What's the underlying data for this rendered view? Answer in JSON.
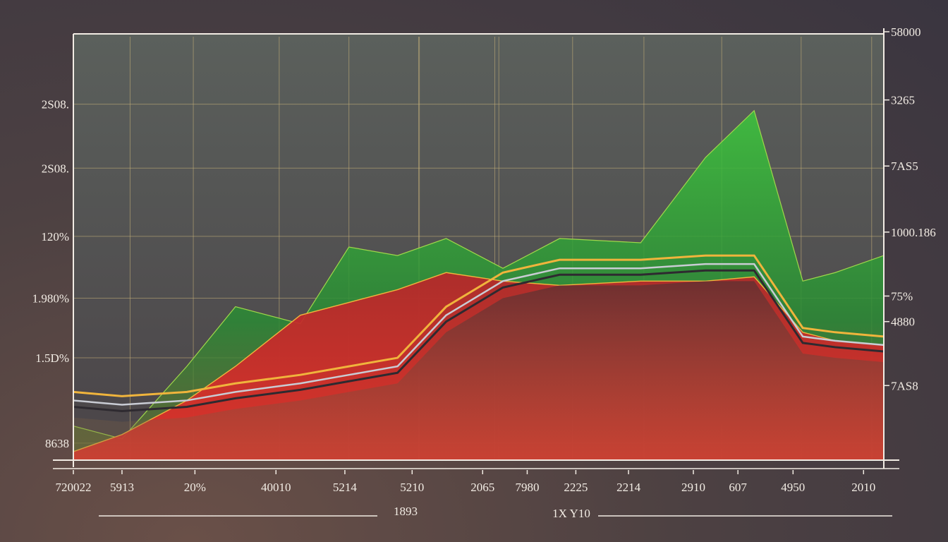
{
  "chart_data": {
    "type": "area",
    "title": "",
    "xlabel": "1893",
    "xlabel_secondary": "1X Y10",
    "ylabel": "",
    "x_ticks": [
      "720022",
      "5913",
      "20%",
      "40010",
      "5214",
      "5210",
      "2065",
      "7980",
      "2225",
      "2214",
      "2910",
      "607",
      "4950",
      "2010"
    ],
    "y_ticks_left": [
      "2S08.",
      "2S08.",
      "120%",
      "1.980%",
      "1.5D%",
      "8638"
    ],
    "y_ticks_right": [
      "58000",
      "3265",
      "7AS5",
      "1000.186",
      "75%",
      "4880",
      "7AS8"
    ],
    "grid": true,
    "legend": "none",
    "x": [
      0,
      0.06,
      0.14,
      0.2,
      0.28,
      0.34,
      0.4,
      0.46,
      0.53,
      0.6,
      0.7,
      0.78,
      0.84,
      0.9,
      0.94,
      1
    ],
    "series": [
      {
        "color": "#2fa83a",
        "values": [
          0.08,
          0.05,
          0.22,
          0.36,
          0.32,
          0.5,
          0.48,
          0.52,
          0.45,
          0.52,
          0.51,
          0.71,
          0.82,
          0.42,
          0.44,
          0.48
        ]
      },
      {
        "color": "#d8262a",
        "values": [
          0.02,
          0.06,
          0.14,
          0.22,
          0.34,
          0.37,
          0.4,
          0.44,
          0.42,
          0.41,
          0.42,
          0.42,
          0.43,
          0.3,
          0.28,
          0.27
        ]
      },
      {
        "color": "#f0b43c",
        "values": [
          0.16,
          0.15,
          0.16,
          0.18,
          0.2,
          0.22,
          0.24,
          0.36,
          0.44,
          0.47,
          0.47,
          0.48,
          0.48,
          0.31,
          0.3,
          0.29
        ]
      }
    ]
  },
  "colors": {
    "grid": "#c9b27a",
    "axis": "#f2ece4",
    "green": "#2fa83a",
    "red": "#d8262a",
    "gold": "#f0b43c",
    "silver": "#c9ccd4"
  }
}
